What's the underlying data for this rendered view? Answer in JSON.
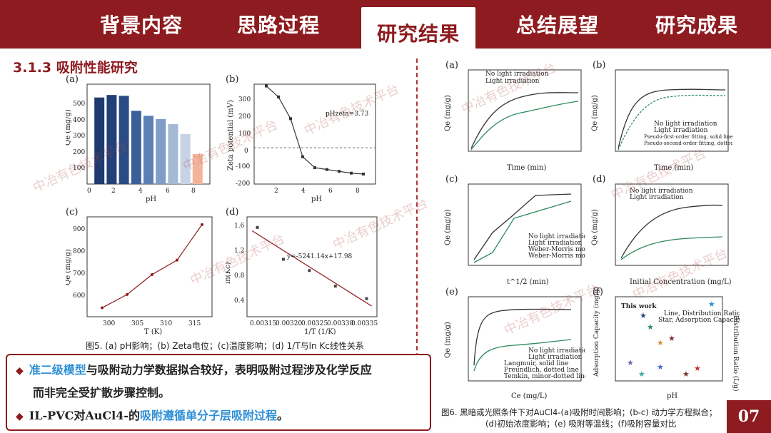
{
  "nav": {
    "tabs": [
      {
        "label": "背景内容"
      },
      {
        "label": "思路过程"
      },
      {
        "label": "研究结果"
      },
      {
        "label": "总结展望"
      },
      {
        "label": "研究成果"
      }
    ]
  },
  "section_title": "3.1.3 吸附性能研究",
  "fig5": {
    "a": {
      "label": "(a)",
      "xlabel": "pH",
      "ylabel": "Qe (mg/g)",
      "xticks": [
        "0",
        "2",
        "4",
        "6",
        "8"
      ],
      "yticks": [
        "100",
        "200",
        "300",
        "400",
        "500"
      ]
    },
    "b": {
      "label": "(b)",
      "xlabel": "pH",
      "ylabel": "Zeta potential (mV)",
      "annotation": "pHzeta=3.73",
      "xticks": [
        "2",
        "4",
        "6",
        "8"
      ],
      "yticks": [
        "-200",
        "-100",
        "0",
        "100",
        "200",
        "300"
      ]
    },
    "c": {
      "label": "(c)",
      "xlabel": "T (K)",
      "ylabel": "Qe (mg/g)",
      "xticks": [
        "300",
        "305",
        "310",
        "315"
      ],
      "yticks": [
        "600",
        "700",
        "800",
        "900"
      ]
    },
    "d": {
      "label": "(d)",
      "xlabel": "1/T (1/K)",
      "ylabel": "ln(Kc)",
      "annotation": "y=-5241.14x+17.98",
      "xticks": [
        "0.00315",
        "0.00320",
        "0.00325",
        "0.00330",
        "0.00335"
      ],
      "yticks": [
        "0.4",
        "0.8",
        "1.2",
        "1.6"
      ]
    },
    "caption": "图5. (a) pH影响；(b) Zeta电位；(c)温度影响；(d) 1/T与ln Kc线性关系"
  },
  "chart_data": [
    {
      "type": "bar",
      "panel": "a",
      "categories": [
        "1",
        "2",
        "3",
        "4",
        "5",
        "6",
        "7",
        "8",
        "9"
      ],
      "values": [
        520,
        535,
        530,
        440,
        410,
        390,
        360,
        300,
        180
      ],
      "xlabel": "pH",
      "ylabel": "Qe (mg/g)",
      "ylim": [
        0,
        600
      ]
    },
    {
      "type": "line",
      "panel": "b",
      "x": [
        1,
        2,
        3,
        4,
        5,
        6,
        7,
        8,
        9
      ],
      "y": [
        340,
        280,
        160,
        -50,
        -110,
        -120,
        -130,
        -140,
        -145
      ],
      "xlabel": "pH",
      "ylabel": "Zeta potential (mV)",
      "ylim": [
        -200,
        350
      ]
    },
    {
      "type": "line",
      "panel": "c",
      "x": [
        298,
        303,
        308,
        313,
        318
      ],
      "y": [
        540,
        600,
        690,
        755,
        915
      ],
      "xlabel": "T (K)",
      "ylabel": "Qe (mg/g)",
      "ylim": [
        500,
        950
      ]
    },
    {
      "type": "scatter",
      "panel": "d",
      "x": [
        0.00314,
        0.00319,
        0.00324,
        0.00329,
        0.00335
      ],
      "y": [
        1.63,
        1.12,
        0.94,
        0.69,
        0.49
      ],
      "xlabel": "1/T (1/K)",
      "ylabel": "ln(Kc)",
      "ylim": [
        0.2,
        1.8
      ]
    }
  ],
  "fig6": {
    "a": {
      "label": "(a)",
      "xlabel": "Time (min)",
      "ylabel": "Qe (mg/g)",
      "legend": [
        "No light irradiation",
        "Light irradiation"
      ]
    },
    "b": {
      "label": "(b)",
      "xlabel": "Time (min)",
      "ylabel": "Qe (mg/g)",
      "legend": [
        "No light irradiation",
        "Light irradiation",
        "Pseudo-first-order fitting, solid line",
        "Pseudo-second-order fitting, dotted line"
      ]
    },
    "c": {
      "label": "(c)",
      "xlabel": "t^1/2 (min)",
      "ylabel": "Qe (mg/g)",
      "legend": [
        "No light irradiation",
        "Light irradiation",
        "Weber-Morris model",
        "Weber-Morris model"
      ]
    },
    "d": {
      "label": "(d)",
      "xlabel": "Initial Concentration (mg/L)",
      "ylabel": "Qe (mg/g)",
      "legend": [
        "No light irradiation",
        "Light irradiation"
      ]
    },
    "e": {
      "label": "(e)",
      "xlabel": "Ce (mg/L)",
      "ylabel": "Qe (mg/g)",
      "legend": [
        "No light irradiation",
        "Light irradiation",
        "Langmuir, solid line",
        "Freundlich, dotted line",
        "Temkin, minor-dotted line"
      ]
    },
    "f": {
      "label": "(f)",
      "xlabel": "pH",
      "ylabel": "Adsorption Capacity (mg/g)",
      "ylabel2": "Distribution Ratio (L/g)",
      "legend": [
        "Line, Distribution Ratio",
        "Star, Adsorption Capacity"
      ],
      "annotation": "This work"
    },
    "caption_line1": "图6. 黑暗或光照条件下对AuCl4-(a)吸附时间影响；(b-c) 动力学方程拟合；",
    "caption_line2": "(d)初始浓度影响；(e) 吸附等温线；(f)吸附容量对比"
  },
  "conclusions": {
    "line1_highlight": "准二级模型",
    "line1_rest": "与吸附动力学数据拟合较好，表明吸附过程涉及化学反应",
    "line2": "而非完全受扩散步骤控制。",
    "line3_start": "IL-PVC对AuCl4-的",
    "line3_highlight": "吸附遵循单分子层吸附过程",
    "line3_end": "。"
  },
  "watermark": "中冶有色技术平台",
  "page_number": "07"
}
